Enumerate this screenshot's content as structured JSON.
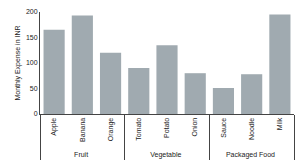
{
  "chart_data": {
    "type": "bar",
    "categories": [
      "Apple",
      "Banana",
      "Orange",
      "Tomato",
      "Potato",
      "Onion",
      "Sauce",
      "Noodle",
      "Milk"
    ],
    "values": [
      165,
      193,
      120,
      90,
      135,
      80,
      51,
      78,
      195
    ],
    "groups": [
      {
        "label": "Fruit",
        "categories": [
          "Apple",
          "Banana",
          "Orange"
        ]
      },
      {
        "label": "Vegetable",
        "categories": [
          "Tomato",
          "Potato",
          "Onion"
        ]
      },
      {
        "label": "Packaged Food",
        "categories": [
          "Sauce",
          "Noodle",
          "Milk"
        ]
      }
    ],
    "color": "#a0aab0",
    "ylabel": "Monthly Expense in INR",
    "ylim": [
      0,
      200
    ],
    "yticks": [
      0,
      50,
      100,
      150,
      200
    ],
    "grid": false
  }
}
